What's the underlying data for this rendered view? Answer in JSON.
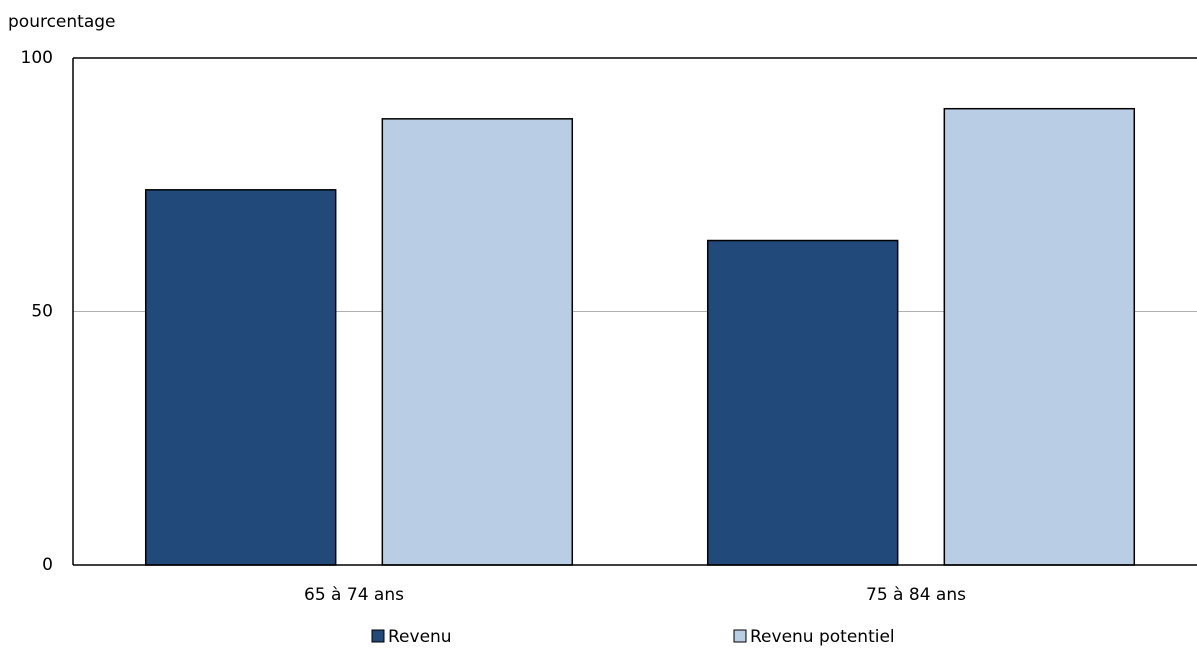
{
  "chart_data": {
    "type": "bar",
    "y_label": "pourcentage",
    "categories": [
      "65 à 74 ans",
      "75 à 84 ans"
    ],
    "series": [
      {
        "name": "Revenu",
        "color": "#21497a",
        "values": [
          74,
          64
        ]
      },
      {
        "name": "Revenu potentiel",
        "color": "#b9cde4",
        "values": [
          88,
          90
        ]
      }
    ],
    "ylim": [
      0,
      100
    ],
    "yticks": [
      0,
      50,
      100
    ],
    "grid": true
  }
}
